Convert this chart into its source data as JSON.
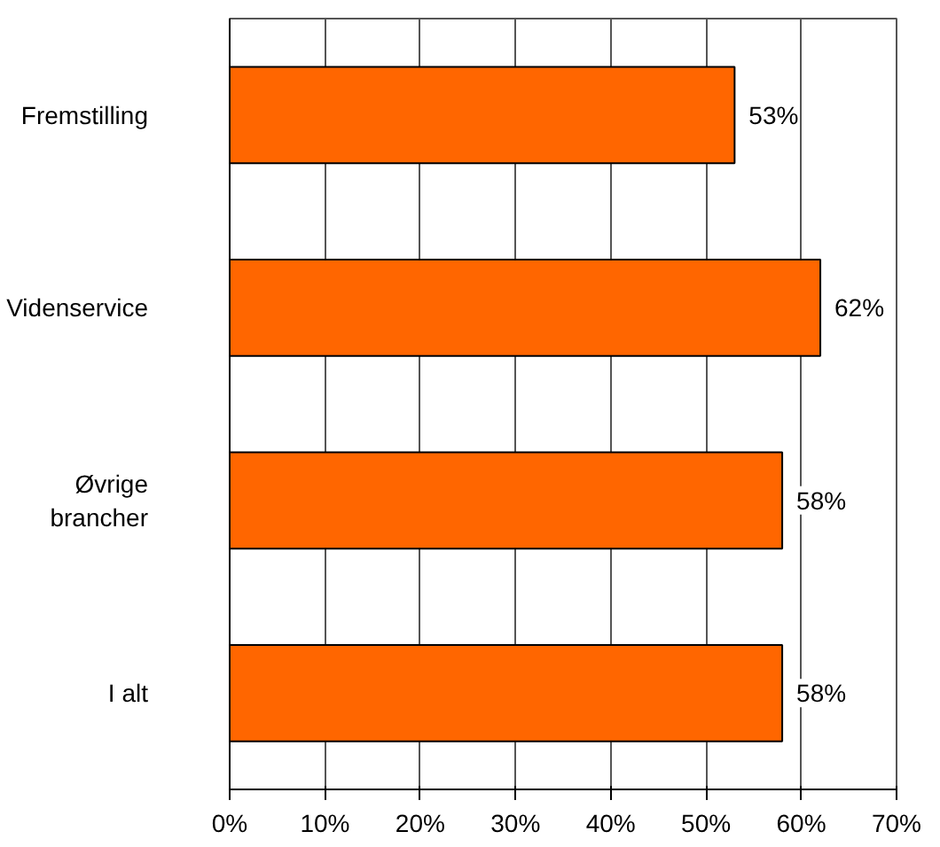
{
  "chart_data": {
    "type": "bar",
    "orientation": "horizontal",
    "categories": [
      "Fremstilling",
      "Videnservice",
      "Øvrige\nbrancher",
      "I alt"
    ],
    "values": [
      53,
      62,
      58,
      58
    ],
    "color": "#ff6600",
    "data_labels": true,
    "value_labels": [
      "53%",
      "62%",
      "58%",
      "58%"
    ],
    "xlim": [
      0,
      70
    ],
    "xticks": [
      {
        "value": 0,
        "label": "0%"
      },
      {
        "value": 10,
        "label": "10%"
      },
      {
        "value": 20,
        "label": "20%"
      },
      {
        "value": 30,
        "label": "30%"
      },
      {
        "value": 40,
        "label": "40%"
      },
      {
        "value": 50,
        "label": "50%"
      },
      {
        "value": 60,
        "label": "60%"
      },
      {
        "value": 70,
        "label": "70%"
      }
    ],
    "grid": "x"
  }
}
